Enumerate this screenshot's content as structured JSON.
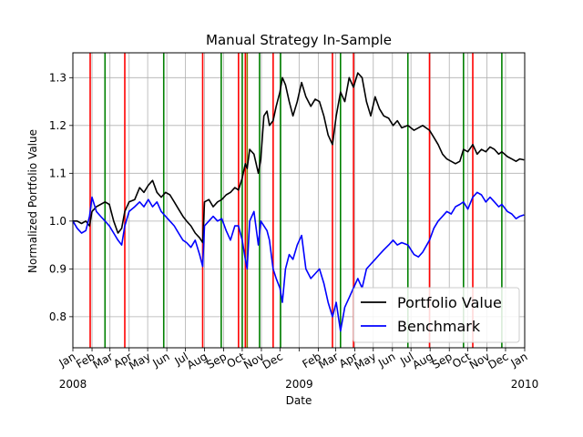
{
  "chart_data": {
    "type": "line",
    "title": "Manual Strategy In-Sample",
    "xlabel": "Date",
    "ylabel": "Normalized Portfolio Value",
    "xlim": [
      "2008-01-01",
      "2010-01-01"
    ],
    "ylim": [
      0.735,
      1.352
    ],
    "grid": true,
    "legend": "lower-right",
    "x_tick_labels": [
      {
        "date": "2008-01-01",
        "label": "Jan",
        "sub": "2008"
      },
      {
        "date": "2008-02-01",
        "label": "Feb",
        "sub": ""
      },
      {
        "date": "2008-03-01",
        "label": "Mar",
        "sub": ""
      },
      {
        "date": "2008-04-01",
        "label": "Apr",
        "sub": ""
      },
      {
        "date": "2008-05-01",
        "label": "May",
        "sub": ""
      },
      {
        "date": "2008-06-01",
        "label": "Jun",
        "sub": ""
      },
      {
        "date": "2008-07-01",
        "label": "Jul",
        "sub": ""
      },
      {
        "date": "2008-08-01",
        "label": "Aug",
        "sub": ""
      },
      {
        "date": "2008-09-01",
        "label": "Sep",
        "sub": ""
      },
      {
        "date": "2008-10-01",
        "label": "Oct",
        "sub": ""
      },
      {
        "date": "2008-11-01",
        "label": "Nov",
        "sub": ""
      },
      {
        "date": "2008-12-01",
        "label": "Dec",
        "sub": ""
      },
      {
        "date": "2009-01-01",
        "label": "",
        "sub": "2009"
      },
      {
        "date": "2009-02-01",
        "label": "Feb",
        "sub": ""
      },
      {
        "date": "2009-03-01",
        "label": "Mar",
        "sub": ""
      },
      {
        "date": "2009-04-01",
        "label": "Apr",
        "sub": ""
      },
      {
        "date": "2009-05-01",
        "label": "May",
        "sub": ""
      },
      {
        "date": "2009-06-01",
        "label": "Jun",
        "sub": ""
      },
      {
        "date": "2009-07-01",
        "label": "Jul",
        "sub": ""
      },
      {
        "date": "2009-08-01",
        "label": "Aug",
        "sub": ""
      },
      {
        "date": "2009-09-01",
        "label": "Sep",
        "sub": ""
      },
      {
        "date": "2009-10-01",
        "label": "Oct",
        "sub": ""
      },
      {
        "date": "2009-11-01",
        "label": "Nov",
        "sub": ""
      },
      {
        "date": "2009-12-01",
        "label": "Dec",
        "sub": ""
      },
      {
        "date": "2010-01-01",
        "label": "Jan",
        "sub": "2010"
      }
    ],
    "y_ticks": [
      0.8,
      0.9,
      1.0,
      1.1,
      1.2,
      1.3
    ],
    "y_tick_labels": [
      "0.8",
      "0.9",
      "1.0",
      "1.1",
      "1.2",
      "1.3"
    ],
    "vlines": [
      {
        "date": "2008-01-29",
        "color": "#ff0000"
      },
      {
        "date": "2008-02-22",
        "color": "#008000"
      },
      {
        "date": "2008-03-25",
        "color": "#ff0000"
      },
      {
        "date": "2008-05-27",
        "color": "#008000"
      },
      {
        "date": "2008-07-29",
        "color": "#ff0000"
      },
      {
        "date": "2008-08-28",
        "color": "#008000"
      },
      {
        "date": "2008-09-25",
        "color": "#ff0000"
      },
      {
        "date": "2008-10-01",
        "color": "#008000"
      },
      {
        "date": "2008-10-06",
        "color": "#ff0000"
      },
      {
        "date": "2008-10-09",
        "color": "#808000"
      },
      {
        "date": "2008-10-29",
        "color": "#008000"
      },
      {
        "date": "2008-11-20",
        "color": "#ff0000"
      },
      {
        "date": "2008-12-02",
        "color": "#008000"
      },
      {
        "date": "2009-02-24",
        "color": "#ff0000"
      },
      {
        "date": "2009-03-09",
        "color": "#008000"
      },
      {
        "date": "2009-03-30",
        "color": "#ff0000"
      },
      {
        "date": "2009-06-26",
        "color": "#008000"
      },
      {
        "date": "2009-07-31",
        "color": "#ff0000"
      },
      {
        "date": "2009-09-24",
        "color": "#008000"
      },
      {
        "date": "2009-10-09",
        "color": "#ff0000"
      },
      {
        "date": "2009-11-25",
        "color": "#008000"
      }
    ],
    "series": [
      {
        "name": "Portfolio Value",
        "color": "#000000",
        "points": [
          [
            "2008-01-01",
            1.0
          ],
          [
            "2008-01-08",
            1.0
          ],
          [
            "2008-01-15",
            0.995
          ],
          [
            "2008-01-22",
            1.0
          ],
          [
            "2008-01-28",
            0.99
          ],
          [
            "2008-02-01",
            1.02
          ],
          [
            "2008-02-08",
            1.03
          ],
          [
            "2008-02-15",
            1.035
          ],
          [
            "2008-02-22",
            1.04
          ],
          [
            "2008-02-29",
            1.035
          ],
          [
            "2008-03-07",
            1.0
          ],
          [
            "2008-03-14",
            0.975
          ],
          [
            "2008-03-20",
            0.985
          ],
          [
            "2008-03-25",
            1.02
          ],
          [
            "2008-04-01",
            1.04
          ],
          [
            "2008-04-10",
            1.045
          ],
          [
            "2008-04-18",
            1.07
          ],
          [
            "2008-04-25",
            1.06
          ],
          [
            "2008-05-02",
            1.075
          ],
          [
            "2008-05-09",
            1.085
          ],
          [
            "2008-05-16",
            1.06
          ],
          [
            "2008-05-23",
            1.05
          ],
          [
            "2008-05-30",
            1.06
          ],
          [
            "2008-06-06",
            1.055
          ],
          [
            "2008-06-13",
            1.04
          ],
          [
            "2008-06-20",
            1.025
          ],
          [
            "2008-06-27",
            1.01
          ],
          [
            "2008-07-03",
            1.0
          ],
          [
            "2008-07-10",
            0.99
          ],
          [
            "2008-07-17",
            0.975
          ],
          [
            "2008-07-24",
            0.965
          ],
          [
            "2008-07-29",
            0.955
          ],
          [
            "2008-08-01",
            1.04
          ],
          [
            "2008-08-08",
            1.045
          ],
          [
            "2008-08-15",
            1.03
          ],
          [
            "2008-08-22",
            1.04
          ],
          [
            "2008-08-29",
            1.045
          ],
          [
            "2008-09-05",
            1.055
          ],
          [
            "2008-09-12",
            1.06
          ],
          [
            "2008-09-19",
            1.07
          ],
          [
            "2008-09-25",
            1.065
          ],
          [
            "2008-10-01",
            1.09
          ],
          [
            "2008-10-06",
            1.12
          ],
          [
            "2008-10-09",
            1.11
          ],
          [
            "2008-10-13",
            1.15
          ],
          [
            "2008-10-20",
            1.14
          ],
          [
            "2008-10-27",
            1.1
          ],
          [
            "2008-10-31",
            1.13
          ],
          [
            "2008-11-05",
            1.22
          ],
          [
            "2008-11-10",
            1.23
          ],
          [
            "2008-11-14",
            1.2
          ],
          [
            "2008-11-20",
            1.21
          ],
          [
            "2008-11-25",
            1.24
          ],
          [
            "2008-12-01",
            1.27
          ],
          [
            "2008-12-05",
            1.3
          ],
          [
            "2008-12-10",
            1.285
          ],
          [
            "2008-12-16",
            1.25
          ],
          [
            "2008-12-22",
            1.22
          ],
          [
            "2008-12-29",
            1.25
          ],
          [
            "2009-01-05",
            1.29
          ],
          [
            "2009-01-12",
            1.26
          ],
          [
            "2009-01-20",
            1.24
          ],
          [
            "2009-01-27",
            1.255
          ],
          [
            "2009-02-03",
            1.25
          ],
          [
            "2009-02-10",
            1.22
          ],
          [
            "2009-02-17",
            1.18
          ],
          [
            "2009-02-24",
            1.16
          ],
          [
            "2009-03-02",
            1.22
          ],
          [
            "2009-03-09",
            1.27
          ],
          [
            "2009-03-16",
            1.25
          ],
          [
            "2009-03-23",
            1.3
          ],
          [
            "2009-03-30",
            1.28
          ],
          [
            "2009-04-06",
            1.31
          ],
          [
            "2009-04-13",
            1.3
          ],
          [
            "2009-04-20",
            1.25
          ],
          [
            "2009-04-27",
            1.22
          ],
          [
            "2009-05-04",
            1.26
          ],
          [
            "2009-05-11",
            1.235
          ],
          [
            "2009-05-18",
            1.22
          ],
          [
            "2009-05-26",
            1.215
          ],
          [
            "2009-06-02",
            1.2
          ],
          [
            "2009-06-09",
            1.21
          ],
          [
            "2009-06-16",
            1.195
          ],
          [
            "2009-06-26",
            1.2
          ],
          [
            "2009-07-06",
            1.19
          ],
          [
            "2009-07-13",
            1.195
          ],
          [
            "2009-07-20",
            1.2
          ],
          [
            "2009-07-31",
            1.19
          ],
          [
            "2009-08-07",
            1.175
          ],
          [
            "2009-08-14",
            1.16
          ],
          [
            "2009-08-21",
            1.14
          ],
          [
            "2009-08-28",
            1.13
          ],
          [
            "2009-09-04",
            1.125
          ],
          [
            "2009-09-11",
            1.12
          ],
          [
            "2009-09-18",
            1.125
          ],
          [
            "2009-09-24",
            1.15
          ],
          [
            "2009-10-01",
            1.145
          ],
          [
            "2009-10-09",
            1.16
          ],
          [
            "2009-10-16",
            1.14
          ],
          [
            "2009-10-23",
            1.15
          ],
          [
            "2009-10-30",
            1.145
          ],
          [
            "2009-11-06",
            1.155
          ],
          [
            "2009-11-13",
            1.15
          ],
          [
            "2009-11-20",
            1.14
          ],
          [
            "2009-11-25",
            1.145
          ],
          [
            "2009-12-04",
            1.135
          ],
          [
            "2009-12-11",
            1.13
          ],
          [
            "2009-12-18",
            1.125
          ],
          [
            "2009-12-24",
            1.13
          ],
          [
            "2009-12-31",
            1.128
          ]
        ]
      },
      {
        "name": "Benchmark",
        "color": "#0000ff",
        "points": [
          [
            "2008-01-01",
            1.0
          ],
          [
            "2008-01-08",
            0.985
          ],
          [
            "2008-01-15",
            0.975
          ],
          [
            "2008-01-22",
            0.98
          ],
          [
            "2008-01-28",
            1.01
          ],
          [
            "2008-02-01",
            1.05
          ],
          [
            "2008-02-08",
            1.02
          ],
          [
            "2008-02-15",
            1.01
          ],
          [
            "2008-02-22",
            1.0
          ],
          [
            "2008-02-29",
            0.99
          ],
          [
            "2008-03-07",
            0.975
          ],
          [
            "2008-03-14",
            0.96
          ],
          [
            "2008-03-20",
            0.95
          ],
          [
            "2008-03-25",
            0.99
          ],
          [
            "2008-04-01",
            1.02
          ],
          [
            "2008-04-10",
            1.03
          ],
          [
            "2008-04-18",
            1.04
          ],
          [
            "2008-04-25",
            1.03
          ],
          [
            "2008-05-02",
            1.045
          ],
          [
            "2008-05-09",
            1.03
          ],
          [
            "2008-05-16",
            1.04
          ],
          [
            "2008-05-23",
            1.02
          ],
          [
            "2008-05-30",
            1.01
          ],
          [
            "2008-06-06",
            1.0
          ],
          [
            "2008-06-13",
            0.99
          ],
          [
            "2008-06-20",
            0.975
          ],
          [
            "2008-06-27",
            0.96
          ],
          [
            "2008-07-03",
            0.955
          ],
          [
            "2008-07-10",
            0.945
          ],
          [
            "2008-07-17",
            0.96
          ],
          [
            "2008-07-24",
            0.93
          ],
          [
            "2008-07-29",
            0.905
          ],
          [
            "2008-08-01",
            0.99
          ],
          [
            "2008-08-08",
            1.0
          ],
          [
            "2008-08-15",
            1.01
          ],
          [
            "2008-08-22",
            1.0
          ],
          [
            "2008-08-29",
            1.005
          ],
          [
            "2008-09-05",
            0.98
          ],
          [
            "2008-09-12",
            0.96
          ],
          [
            "2008-09-19",
            0.99
          ],
          [
            "2008-09-25",
            0.99
          ],
          [
            "2008-10-01",
            0.96
          ],
          [
            "2008-10-06",
            0.92
          ],
          [
            "2008-10-09",
            0.9
          ],
          [
            "2008-10-13",
            1.0
          ],
          [
            "2008-10-20",
            1.02
          ],
          [
            "2008-10-27",
            0.95
          ],
          [
            "2008-10-31",
            1.0
          ],
          [
            "2008-11-05",
            0.99
          ],
          [
            "2008-11-10",
            0.98
          ],
          [
            "2008-11-14",
            0.96
          ],
          [
            "2008-11-20",
            0.9
          ],
          [
            "2008-11-25",
            0.88
          ],
          [
            "2008-12-01",
            0.86
          ],
          [
            "2008-12-05",
            0.83
          ],
          [
            "2008-12-10",
            0.9
          ],
          [
            "2008-12-16",
            0.93
          ],
          [
            "2008-12-22",
            0.92
          ],
          [
            "2008-12-29",
            0.95
          ],
          [
            "2009-01-05",
            0.97
          ],
          [
            "2009-01-12",
            0.9
          ],
          [
            "2009-01-20",
            0.88
          ],
          [
            "2009-01-27",
            0.89
          ],
          [
            "2009-02-03",
            0.9
          ],
          [
            "2009-02-10",
            0.87
          ],
          [
            "2009-02-17",
            0.83
          ],
          [
            "2009-02-24",
            0.8
          ],
          [
            "2009-03-02",
            0.83
          ],
          [
            "2009-03-09",
            0.77
          ],
          [
            "2009-03-16",
            0.82
          ],
          [
            "2009-03-23",
            0.84
          ],
          [
            "2009-03-30",
            0.86
          ],
          [
            "2009-04-06",
            0.88
          ],
          [
            "2009-04-13",
            0.86
          ],
          [
            "2009-04-20",
            0.9
          ],
          [
            "2009-04-27",
            0.91
          ],
          [
            "2009-05-04",
            0.92
          ],
          [
            "2009-05-11",
            0.93
          ],
          [
            "2009-05-18",
            0.94
          ],
          [
            "2009-05-26",
            0.95
          ],
          [
            "2009-06-02",
            0.96
          ],
          [
            "2009-06-09",
            0.95
          ],
          [
            "2009-06-16",
            0.955
          ],
          [
            "2009-06-26",
            0.95
          ],
          [
            "2009-07-06",
            0.93
          ],
          [
            "2009-07-13",
            0.925
          ],
          [
            "2009-07-20",
            0.935
          ],
          [
            "2009-07-31",
            0.96
          ],
          [
            "2009-08-07",
            0.985
          ],
          [
            "2009-08-14",
            1.0
          ],
          [
            "2009-08-21",
            1.01
          ],
          [
            "2009-08-28",
            1.02
          ],
          [
            "2009-09-04",
            1.015
          ],
          [
            "2009-09-11",
            1.03
          ],
          [
            "2009-09-18",
            1.035
          ],
          [
            "2009-09-24",
            1.04
          ],
          [
            "2009-10-01",
            1.025
          ],
          [
            "2009-10-09",
            1.05
          ],
          [
            "2009-10-16",
            1.06
          ],
          [
            "2009-10-23",
            1.055
          ],
          [
            "2009-10-30",
            1.04
          ],
          [
            "2009-11-06",
            1.05
          ],
          [
            "2009-11-13",
            1.04
          ],
          [
            "2009-11-20",
            1.03
          ],
          [
            "2009-11-25",
            1.035
          ],
          [
            "2009-12-04",
            1.02
          ],
          [
            "2009-12-11",
            1.015
          ],
          [
            "2009-12-18",
            1.005
          ],
          [
            "2009-12-24",
            1.01
          ],
          [
            "2009-12-31",
            1.013
          ]
        ]
      }
    ]
  }
}
